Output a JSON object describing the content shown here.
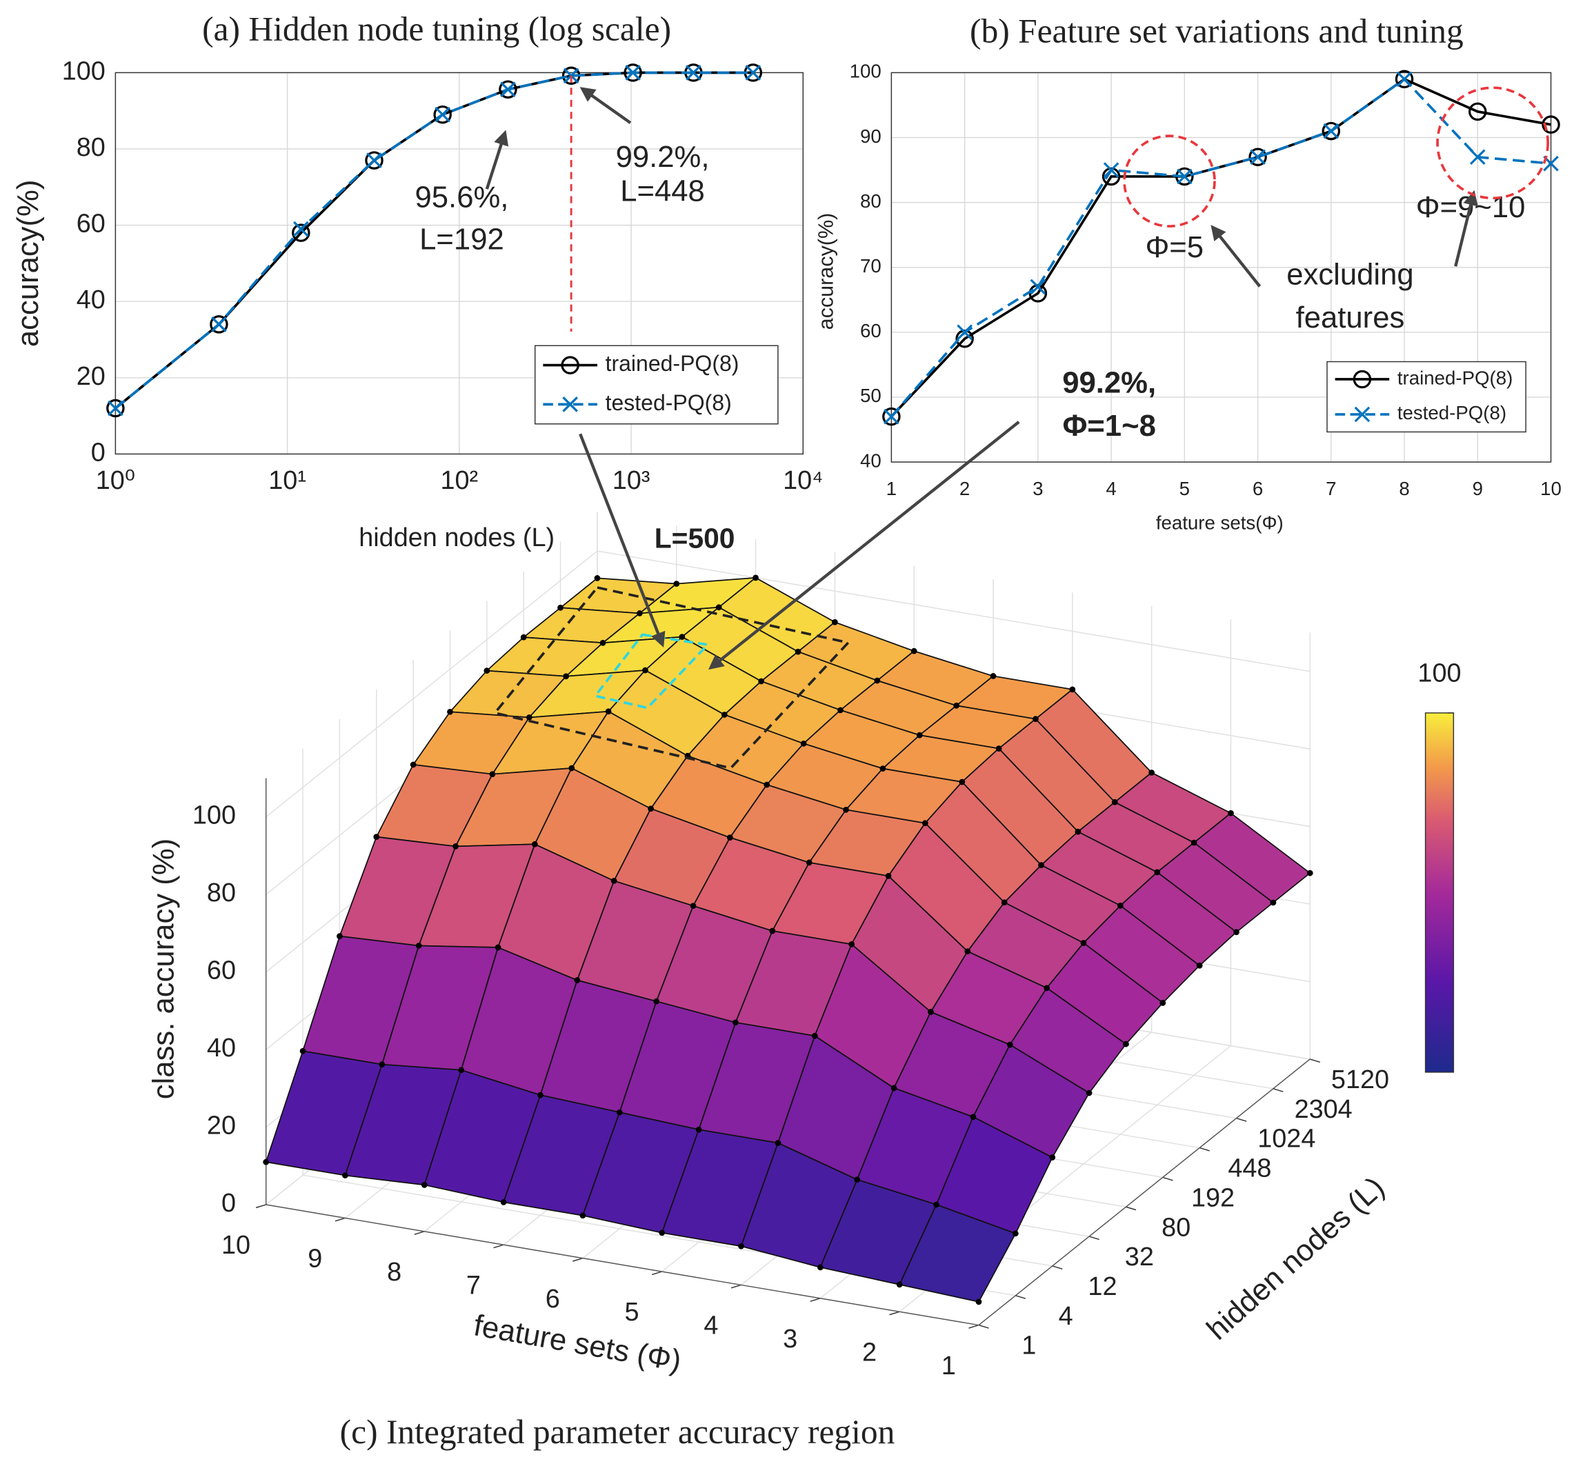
{
  "chart_data": [
    {
      "type": "line",
      "title": "(a) Hidden node tuning (log scale)",
      "x_label": "hidden nodes (L)",
      "y_label": "accuracy(%)",
      "x": [
        1,
        4,
        12,
        32,
        80,
        192,
        448,
        1024,
        2304,
        5120
      ],
      "series": [
        {
          "name": "trained-PQ(8)",
          "color": "#000000",
          "marker": "o",
          "values": [
            12,
            34,
            58,
            77,
            89,
            95.6,
            99.2,
            100,
            100,
            100
          ]
        },
        {
          "name": "tested-PQ(8)",
          "color": "#0072bd",
          "marker": "x",
          "values": [
            12,
            34,
            59,
            77,
            89,
            95.6,
            99.2,
            100,
            100,
            100
          ]
        }
      ],
      "log_x": true,
      "xlim": [
        1,
        10000
      ],
      "xticks": [
        {
          "value": 1,
          "label": "10⁰"
        },
        {
          "value": 10,
          "label": "10¹"
        },
        {
          "value": 100,
          "label": "10²"
        },
        {
          "value": 1000,
          "label": "10³"
        },
        {
          "value": 10000,
          "label": "10⁴"
        }
      ],
      "ylim": [
        0,
        100
      ],
      "yticks": [
        0,
        20,
        40,
        60,
        80,
        100
      ],
      "grid": true,
      "legend": "lower right",
      "annotations": [
        "95.6%,",
        "L=192",
        "99.2%,",
        "L=448"
      ]
    },
    {
      "type": "line",
      "title": "(b) Feature set variations and tuning",
      "x_label": "feature sets(Φ)",
      "y_label": "accuracy(%)",
      "x": [
        1,
        2,
        3,
        4,
        5,
        6,
        7,
        8,
        9,
        10
      ],
      "series": [
        {
          "name": "trained-PQ(8)",
          "color": "#000000",
          "marker": "o",
          "values": [
            47,
            59,
            66,
            84,
            84,
            87,
            91,
            99,
            94,
            92
          ]
        },
        {
          "name": "tested-PQ(8)",
          "color": "#0072bd",
          "marker": "x",
          "values": [
            47,
            60,
            67,
            85,
            84,
            87,
            91,
            99,
            87,
            86
          ]
        }
      ],
      "log_x": false,
      "xlim": [
        1,
        10
      ],
      "xticks": [
        1,
        2,
        3,
        4,
        5,
        6,
        7,
        8,
        9,
        10
      ],
      "ylim": [
        40,
        100
      ],
      "yticks": [
        40,
        50,
        60,
        70,
        80,
        90,
        100
      ],
      "grid": true,
      "legend": "lower right",
      "annotations": [
        "Φ=5",
        "Φ=9~10",
        "excluding",
        "features",
        "99.2%,",
        "Φ=1~8"
      ]
    },
    {
      "type": "surface",
      "title": "(c) Integrated parameter accuracy region",
      "x_label": "feature sets (Φ)",
      "y_label": "hidden nodes (L)",
      "z_label": "class. accuracy (%)",
      "x": [
        1,
        2,
        3,
        4,
        5,
        6,
        7,
        8,
        9,
        10
      ],
      "y": [
        1,
        4,
        12,
        32,
        80,
        192,
        448,
        1024,
        2304,
        5120
      ],
      "z": [
        [
          6,
          16,
          28,
          37,
          42,
          45,
          47,
          48,
          48,
          48
        ],
        [
          7,
          20,
          35,
          46,
          53,
          57,
          59,
          60,
          60,
          60
        ],
        [
          8,
          23,
          39,
          51,
          59,
          64,
          66,
          67,
          67,
          67
        ],
        [
          10,
          29,
          49,
          65,
          75,
          81,
          84,
          85,
          85,
          85
        ],
        [
          10,
          29,
          49,
          65,
          75,
          81,
          84,
          85,
          85,
          85
        ],
        [
          11,
          30,
          51,
          68,
          78,
          84,
          87,
          88,
          88,
          88
        ],
        [
          11,
          31,
          53,
          71,
          82,
          88,
          91,
          92,
          92,
          92
        ],
        [
          12,
          34,
          58,
          77,
          89,
          96,
          99,
          100,
          100,
          100
        ],
        [
          11,
          32,
          55,
          73,
          84,
          91,
          94,
          95,
          95,
          95
        ],
        [
          11,
          32,
          54,
          72,
          83,
          89,
          92,
          93,
          93,
          93
        ]
      ],
      "zlim": [
        0,
        110
      ],
      "zticks": [
        0,
        20,
        40,
        60,
        80,
        100
      ],
      "clim": [
        0,
        100
      ],
      "cticks": [
        100
      ],
      "annotations": [
        "L=500"
      ]
    }
  ]
}
